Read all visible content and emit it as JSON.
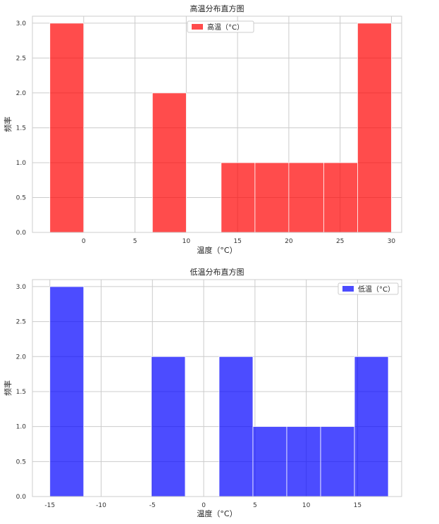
{
  "chart_data": [
    {
      "type": "bar",
      "title": "高温分布直方图",
      "xlabel": "温度（°C）",
      "ylabel": "频率",
      "legend": "高温（°C）",
      "legend_position": "top-center",
      "color": "#ff0000",
      "xlim": [
        -5,
        31
      ],
      "ylim": [
        0,
        3.1
      ],
      "xticks": [
        0,
        5,
        10,
        15,
        20,
        25,
        30
      ],
      "yticks": [
        "0.0",
        "0.5",
        "1.0",
        "1.5",
        "2.0",
        "2.5",
        "3.0"
      ],
      "grid": true,
      "bins": [
        {
          "x0": -3.3,
          "x1": 0.0,
          "value": 3
        },
        {
          "x0": 0.0,
          "x1": 3.4,
          "value": 0
        },
        {
          "x0": 3.4,
          "x1": 6.7,
          "value": 0
        },
        {
          "x0": 6.7,
          "x1": 10.0,
          "value": 2
        },
        {
          "x0": 10.0,
          "x1": 13.4,
          "value": 0
        },
        {
          "x0": 13.4,
          "x1": 16.7,
          "value": 1
        },
        {
          "x0": 16.7,
          "x1": 20.0,
          "value": 1
        },
        {
          "x0": 20.0,
          "x1": 23.4,
          "value": 1
        },
        {
          "x0": 23.4,
          "x1": 26.7,
          "value": 1
        },
        {
          "x0": 26.7,
          "x1": 30.0,
          "value": 3
        }
      ]
    },
    {
      "type": "bar",
      "title": "低温分布直方图",
      "xlabel": "温度（°C）",
      "ylabel": "频率",
      "legend": "低温（°C）",
      "legend_position": "top-right",
      "color": "#0000ff",
      "xlim": [
        -16.7,
        19.3
      ],
      "ylim": [
        0,
        3.1
      ],
      "xticks": [
        -15,
        -10,
        -5,
        0,
        5,
        10,
        15
      ],
      "yticks": [
        "0.0",
        "0.5",
        "1.0",
        "1.5",
        "2.0",
        "2.5",
        "3.0"
      ],
      "grid": true,
      "bins": [
        {
          "x0": -15.0,
          "x1": -11.7,
          "value": 3
        },
        {
          "x0": -11.7,
          "x1": -8.4,
          "value": 0
        },
        {
          "x0": -8.4,
          "x1": -5.1,
          "value": 0
        },
        {
          "x0": -5.1,
          "x1": -1.8,
          "value": 2
        },
        {
          "x0": -1.8,
          "x1": 1.5,
          "value": 0
        },
        {
          "x0": 1.5,
          "x1": 4.8,
          "value": 2
        },
        {
          "x0": 4.8,
          "x1": 8.1,
          "value": 1
        },
        {
          "x0": 8.1,
          "x1": 11.4,
          "value": 1
        },
        {
          "x0": 11.4,
          "x1": 14.7,
          "value": 1
        },
        {
          "x0": 14.7,
          "x1": 18.0,
          "value": 2
        }
      ]
    }
  ]
}
